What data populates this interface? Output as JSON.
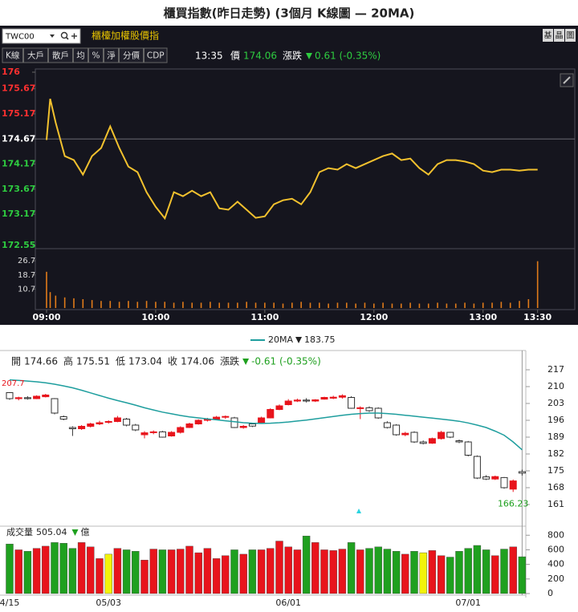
{
  "header": {
    "title": "櫃買指數(昨日走勢) (3個月 K線圖 — 20MA)",
    "symbol": "TWC00",
    "name": "櫃檯加權股價指",
    "side_buttons": [
      "基",
      "晶",
      "圖"
    ],
    "tabs": [
      "K線",
      "大戶",
      "散戶",
      "均",
      "%",
      "淨",
      "分價",
      "CDP"
    ],
    "time": "13:35",
    "price_label": "價",
    "price": 174.06,
    "change_label": "漲跌",
    "change": "0.61 (-0.35%)"
  },
  "kline_info": {
    "open_label": "開",
    "high_label": "高",
    "low_label": "低",
    "close_label": "收",
    "change_label": "漲跌",
    "change": "-0.61 (-0.35%)"
  },
  "chart_data": [
    {
      "type": "line",
      "x": [
        "09:00",
        "09:02",
        "09:05",
        "09:10",
        "09:15",
        "09:20",
        "09:25",
        "09:30",
        "09:35",
        "09:40",
        "09:45",
        "09:50",
        "09:55",
        "10:00",
        "10:05",
        "10:10",
        "10:15",
        "10:20",
        "10:25",
        "10:30",
        "10:35",
        "10:40",
        "10:45",
        "10:50",
        "10:55",
        "11:00",
        "11:05",
        "11:10",
        "11:15",
        "11:20",
        "11:25",
        "11:30",
        "11:35",
        "11:40",
        "11:45",
        "11:50",
        "11:55",
        "12:00",
        "12:05",
        "12:10",
        "12:15",
        "12:20",
        "12:25",
        "12:30",
        "12:35",
        "12:40",
        "12:45",
        "12:50",
        "12:55",
        "13:00",
        "13:05",
        "13:10",
        "13:15",
        "13:20",
        "13:25",
        "13:30"
      ],
      "series": [
        {
          "type": "line",
          "color": "#f2c12e",
          "values": [
            174.65,
            175.47,
            175.0,
            174.33,
            174.25,
            173.96,
            174.33,
            174.49,
            174.92,
            174.49,
            174.12,
            174.01,
            173.61,
            173.32,
            173.09,
            173.61,
            173.53,
            173.64,
            173.53,
            173.61,
            173.29,
            173.26,
            173.42,
            173.26,
            173.1,
            173.13,
            173.37,
            173.45,
            173.48,
            173.37,
            173.61,
            174.01,
            174.09,
            174.06,
            174.17,
            174.09,
            174.17,
            174.25,
            174.33,
            174.38,
            174.25,
            174.28,
            174.09,
            173.96,
            174.17,
            174.25,
            174.25,
            174.22,
            174.17,
            174.04,
            174.01,
            174.06,
            174.06,
            174.04,
            174.06,
            174.06
          ]
        },
        {
          "type": "bar",
          "axis": "y2",
          "color": "#e07b1a",
          "values": [
            20.5,
            9,
            7,
            6,
            5.5,
            5,
            4.5,
            4,
            4,
            3.5,
            4,
            3.5,
            4,
            3.5,
            3.5,
            3,
            3.5,
            3,
            3,
            3.5,
            3,
            3,
            3,
            3.5,
            3,
            3,
            3,
            2.5,
            3,
            3.5,
            3,
            3,
            2.5,
            3,
            3,
            2.5,
            3,
            2.5,
            3,
            2.5,
            2.5,
            3,
            2.5,
            2.5,
            3,
            2.5,
            2.5,
            3,
            2.5,
            3,
            3,
            3.5,
            3,
            4,
            5,
            26.5
          ]
        }
      ],
      "xlim": [
        "09:00",
        "13:35"
      ],
      "xticks": [
        "09:00",
        "10:00",
        "11:00",
        "12:00",
        "13:00",
        "13:30"
      ],
      "ylim": [
        172.55,
        176
      ],
      "yticks": [
        172.55,
        173.17,
        173.67,
        174.17,
        174.67,
        175.17,
        175.67,
        176
      ],
      "reference_line": 174.67,
      "y2lim": [
        0,
        33.6
      ],
      "y2ticks": [
        10.7,
        18.7,
        26.7
      ]
    },
    {
      "type": "candlestick",
      "categories": [
        "4/15",
        null,
        null,
        null,
        null,
        null,
        null,
        null,
        null,
        null,
        null,
        "05/03",
        null,
        null,
        null,
        null,
        null,
        null,
        null,
        null,
        null,
        null,
        null,
        null,
        null,
        null,
        null,
        null,
        null,
        null,
        null,
        "06/01",
        null,
        null,
        null,
        null,
        null,
        null,
        null,
        null,
        null,
        null,
        null,
        null,
        null,
        null,
        null,
        null,
        null,
        null,
        null,
        "07/01",
        null,
        null,
        null,
        null,
        null,
        null
      ],
      "open": [
        207.5,
        205,
        205.4,
        205,
        205.8,
        205,
        197.5,
        193,
        192.5,
        193.5,
        194.5,
        195.2,
        195.5,
        196.5,
        194,
        190,
        191,
        191.2,
        189.5,
        191,
        193,
        194.5,
        196,
        196.5,
        197.3,
        197,
        193,
        194.5,
        195,
        197,
        200.5,
        202.5,
        204,
        204.4,
        204,
        204.8,
        205.2,
        205.6,
        205.5,
        201,
        201.2,
        201,
        195,
        194,
        190,
        191,
        187,
        186.5,
        188.4,
        191,
        187.5,
        187,
        181,
        172.5,
        171.6,
        172.2,
        167.4,
        174.66
      ],
      "high": [
        207.7,
        205.8,
        206,
        206.4,
        207,
        205.2,
        198,
        193.5,
        194,
        195,
        195.8,
        196,
        197.8,
        197,
        194.5,
        191.5,
        191.8,
        191.6,
        191.5,
        193.5,
        195,
        196.4,
        197,
        197.8,
        198,
        197.4,
        194,
        194.8,
        197.5,
        201,
        202.6,
        204.8,
        205,
        205.2,
        204.8,
        205.8,
        206.2,
        206.8,
        206,
        201.8,
        201.8,
        201.4,
        195.6,
        194.4,
        191.2,
        191.4,
        187.6,
        188.8,
        191.6,
        191.2,
        188,
        187.4,
        181.4,
        173.2,
        173,
        172.4,
        171.4,
        175.51
      ],
      "low": [
        204.5,
        204.3,
        204.6,
        204.8,
        205.5,
        198.5,
        196,
        189.5,
        192,
        193,
        194,
        194.6,
        195.2,
        193.5,
        191.5,
        188.5,
        190.2,
        188.8,
        189.2,
        190.5,
        192.8,
        194.2,
        195.5,
        196,
        196.6,
        192.8,
        192.5,
        193.2,
        194.6,
        196.8,
        200.2,
        202.2,
        203.6,
        203.4,
        203.6,
        204.6,
        204.8,
        205,
        200.8,
        196.5,
        199.5,
        196.6,
        192.6,
        189.6,
        189.4,
        186.6,
        186,
        186.2,
        188,
        188.6,
        186.5,
        181,
        171.6,
        171.2,
        171.2,
        167.6,
        166.23,
        173.04
      ],
      "close": [
        205,
        205.4,
        205,
        206,
        206.5,
        199,
        196.5,
        192.5,
        193.5,
        194.5,
        195,
        195.5,
        197,
        194,
        192,
        190.8,
        191.2,
        189,
        191,
        193,
        194.5,
        196,
        196.5,
        197.3,
        197.6,
        193,
        193.5,
        193.6,
        197,
        200.5,
        202,
        204,
        204.4,
        204,
        204.5,
        205.5,
        205.6,
        206.2,
        201,
        201.2,
        200,
        197,
        193,
        190,
        190.6,
        187,
        186.4,
        188.4,
        191,
        189,
        187,
        181.5,
        172,
        171.6,
        172.6,
        168,
        170.8,
        174.06
      ],
      "up_color": "#e8141c",
      "down_color": "#ffffff",
      "series": [
        {
          "name": "20MA",
          "color": "#1e9e9e",
          "values": [
            212.8,
            212.6,
            212.3,
            212,
            211.6,
            211,
            210.3,
            209.5,
            208.5,
            207.4,
            206.3,
            205.2,
            204.2,
            203.3,
            202.3,
            201.2,
            200.3,
            199.4,
            198.7,
            198,
            197.4,
            197,
            196.6,
            196.2,
            195.8,
            195.4,
            195,
            194.8,
            194.7,
            194.8,
            195,
            195.3,
            195.7,
            196.1,
            196.6,
            197.1,
            197.6,
            198.1,
            198.5,
            198.8,
            199,
            199,
            198.8,
            198.5,
            198.1,
            197.7,
            197.3,
            196.9,
            196.5,
            196.1,
            195.6,
            194.9,
            194,
            193,
            191.5,
            189.8,
            187,
            183.75
          ]
        }
      ],
      "ylim": [
        152,
        224
      ],
      "yticks": [
        161,
        168,
        175,
        182,
        189,
        196,
        203,
        210,
        217
      ]
    },
    {
      "type": "bar",
      "title": "成交量",
      "unit": "億",
      "values": [
        680,
        600,
        580,
        620,
        650,
        700,
        690,
        620,
        700,
        640,
        480,
        540,
        620,
        600,
        580,
        460,
        610,
        600,
        600,
        610,
        650,
        560,
        620,
        480,
        520,
        600,
        540,
        600,
        600,
        620,
        720,
        640,
        600,
        790,
        700,
        600,
        590,
        610,
        700,
        600,
        620,
        640,
        610,
        580,
        540,
        580,
        560,
        590,
        520,
        500,
        580,
        620,
        660,
        600,
        520,
        610,
        640,
        505.04
      ],
      "colors": [
        "#1fa01f",
        "#e8141c",
        "#1fa01f",
        "#e8141c",
        "#e8141c",
        "#1fa01f",
        "#1fa01f",
        "#1fa01f",
        "#e8141c",
        "#e8141c",
        "#e8141c",
        "#f2f20a",
        "#e8141c",
        "#1fa01f",
        "#1fa01f",
        "#e8141c",
        "#e8141c",
        "#1fa01f",
        "#e8141c",
        "#e8141c",
        "#e8141c",
        "#e8141c",
        "#e8141c",
        "#e8141c",
        "#e8141c",
        "#1fa01f",
        "#e8141c",
        "#1fa01f",
        "#e8141c",
        "#e8141c",
        "#e8141c",
        "#e8141c",
        "#e8141c",
        "#1fa01f",
        "#e8141c",
        "#e8141c",
        "#e8141c",
        "#e8141c",
        "#1fa01f",
        "#e8141c",
        "#1fa01f",
        "#1fa01f",
        "#1fa01f",
        "#1fa01f",
        "#e8141c",
        "#1fa01f",
        "#f2f20a",
        "#e8141c",
        "#e8141c",
        "#1fa01f",
        "#1fa01f",
        "#1fa01f",
        "#1fa01f",
        "#1fa01f",
        "#e8141c",
        "#1fa01f",
        "#e8141c",
        "#1fa01f"
      ],
      "ylim": [
        0,
        880
      ],
      "yticks": [
        0,
        200,
        400,
        600,
        800
      ]
    }
  ]
}
